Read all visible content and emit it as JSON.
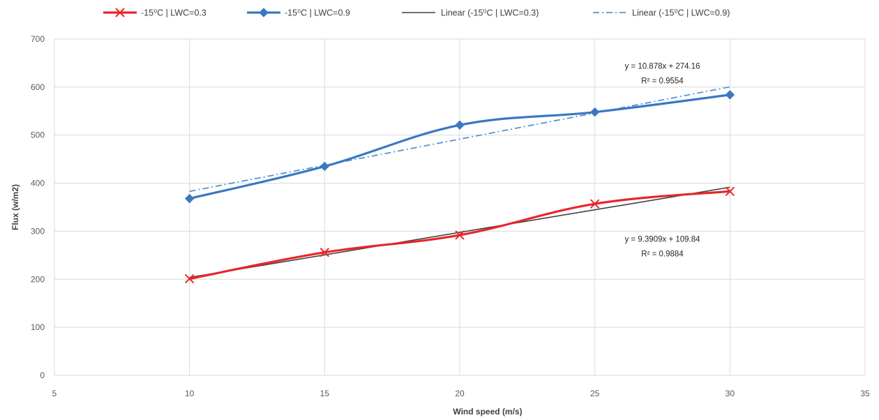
{
  "chart_data": {
    "type": "line",
    "title": "",
    "xlabel": "Wind speed (m/s)",
    "ylabel": "Flux (w/m2)",
    "xlim": [
      5,
      35
    ],
    "ylim": [
      0,
      700
    ],
    "x_ticks": [
      "5",
      "10",
      "15",
      "20",
      "25",
      "30",
      "35"
    ],
    "y_ticks": [
      "0",
      "100",
      "200",
      "300",
      "400",
      "500",
      "600",
      "700"
    ],
    "grid": true,
    "legend_position": "top",
    "series": [
      {
        "name": "-15⁰C | LWC=0.3",
        "color": "#e8262b",
        "marker": "x",
        "x": [
          10,
          15,
          20,
          25,
          30
        ],
        "y": [
          201,
          256,
          292,
          357,
          383
        ]
      },
      {
        "name": "-15⁰C | LWC=0.9",
        "color": "#3a78c2",
        "marker": "diamond",
        "x": [
          10,
          15,
          20,
          25,
          30
        ],
        "y": [
          368,
          435,
          521,
          548,
          584
        ]
      }
    ],
    "trendlines": [
      {
        "name": "Linear   (-15⁰C | LWC=0.3)",
        "color": "#404040",
        "style": "solid",
        "slope": 9.3909,
        "intercept": 109.84,
        "equation": "y = 9.3909x + 109.84",
        "r2": "R² = 0.9884"
      },
      {
        "name": "Linear   (-15⁰C | LWC=0.9)",
        "color": "#4f97d6",
        "style": "dash-dot",
        "slope": 10.878,
        "intercept": 274.16,
        "equation": "y = 10.878x + 274.16",
        "r2": "R² = 0.9554"
      }
    ]
  }
}
